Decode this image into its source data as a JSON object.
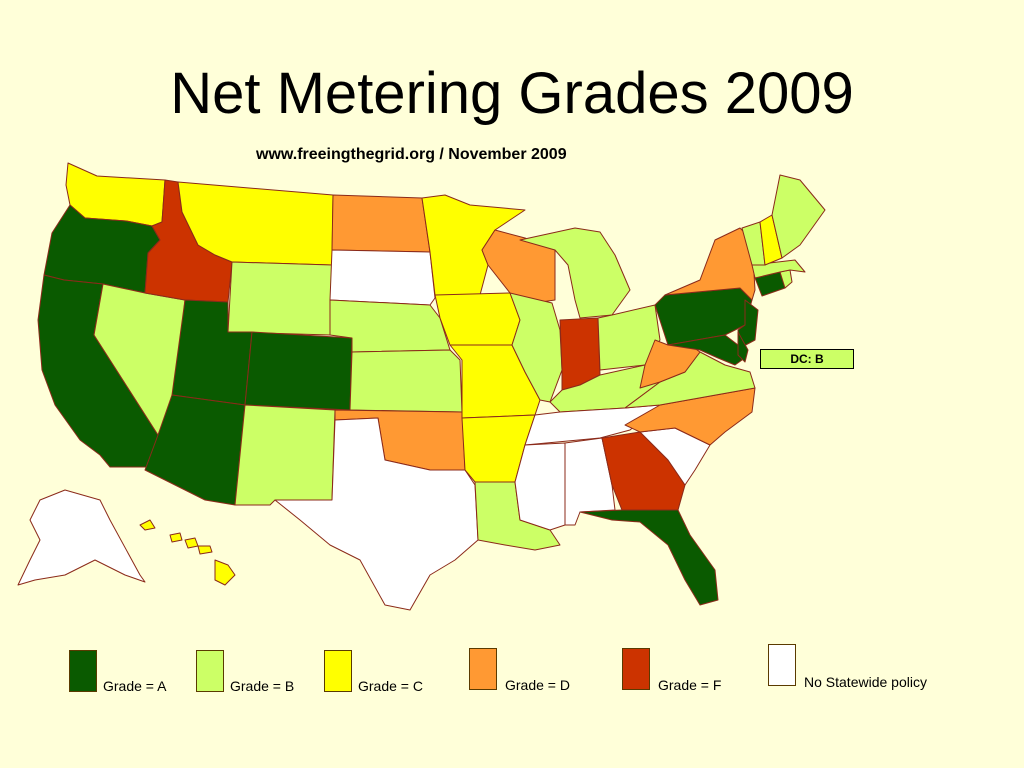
{
  "title": "Net Metering Grades 2009",
  "subtitle": "www.freeingthegrid.org / November 2009",
  "dc_label": "DC: B",
  "colors": {
    "background": "#ffffd9",
    "A": "#0a5a00",
    "B": "#ccff66",
    "C": "#ffff00",
    "D": "#ff9933",
    "F": "#cc3300",
    "none": "#ffffff",
    "border": "#8b2a1a"
  },
  "legend": [
    {
      "grade": "A",
      "label": "Grade = A"
    },
    {
      "grade": "B",
      "label": "Grade = B"
    },
    {
      "grade": "C",
      "label": "Grade = C"
    },
    {
      "grade": "D",
      "label": "Grade = D"
    },
    {
      "grade": "F",
      "label": "Grade = F"
    },
    {
      "grade": "none",
      "label": "No Statewide policy"
    }
  ],
  "states": {
    "WA": "C",
    "OR": "A",
    "CA": "A",
    "NV": "B",
    "ID": "F",
    "MT": "C",
    "WY": "B",
    "UT": "A",
    "AZ": "A",
    "CO": "A",
    "NM": "B",
    "ND": "D",
    "SD": "none",
    "NE": "B",
    "KS": "B",
    "OK": "D",
    "TX": "none",
    "MN": "C",
    "IA": "C",
    "MO": "C",
    "AR": "C",
    "LA": "B",
    "WI": "D",
    "IL": "B",
    "MI": "B",
    "IN": "F",
    "OH": "B",
    "KY": "B",
    "TN": "none",
    "MS": "none",
    "AL": "none",
    "GA": "F",
    "FL": "A",
    "SC": "none",
    "NC": "D",
    "VA": "B",
    "WV": "D",
    "PA": "A",
    "NY": "D",
    "NJ": "A",
    "MD": "A",
    "DE": "A",
    "CT": "A",
    "RI": "B",
    "MA": "B",
    "VT": "B",
    "NH": "C",
    "ME": "B",
    "AK": "none",
    "HI": "C"
  }
}
